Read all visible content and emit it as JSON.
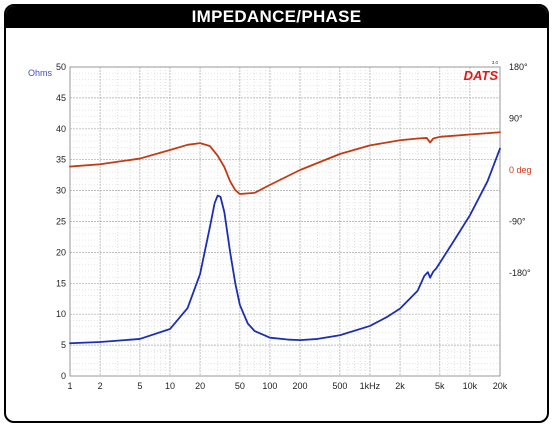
{
  "title": "IMPEDANCE/PHASE",
  "brand": {
    "logo_text": "DATS",
    "version": "3.0"
  },
  "chart_data": {
    "type": "line",
    "x_scale": "log",
    "xlim": [
      1,
      20000
    ],
    "x_tick_values": [
      1,
      2,
      5,
      10,
      20,
      50,
      100,
      200,
      500,
      1000,
      2000,
      5000,
      10000,
      20000
    ],
    "x_tick_labels": [
      "1",
      "2",
      "5",
      "10",
      "20",
      "50",
      "100",
      "200",
      "500",
      "1kHz",
      "2k",
      "5k",
      "10k",
      "20k"
    ],
    "y_left": {
      "label": "Ohms",
      "lim": [
        0,
        50
      ],
      "ticks": [
        0,
        5,
        10,
        15,
        20,
        25,
        30,
        35,
        40,
        45,
        50
      ]
    },
    "y_right": {
      "lim": [
        -360,
        180
      ],
      "tick_values": [
        180,
        90,
        0,
        -90,
        -180
      ],
      "tick_labels": [
        "180°",
        "90°",
        "0 deg",
        "-90°",
        "-180°"
      ]
    },
    "grid": true,
    "series": [
      {
        "name": "impedance",
        "axis": "left",
        "color": "#1b2fb5",
        "points": [
          [
            1,
            5.3
          ],
          [
            2,
            5.5
          ],
          [
            5,
            6.0
          ],
          [
            10,
            7.6
          ],
          [
            15,
            11.0
          ],
          [
            20,
            16.5
          ],
          [
            25,
            24.0
          ],
          [
            28,
            28.0
          ],
          [
            30,
            29.2
          ],
          [
            32,
            29.0
          ],
          [
            35,
            26.5
          ],
          [
            40,
            20.0
          ],
          [
            45,
            15.0
          ],
          [
            50,
            11.5
          ],
          [
            60,
            8.5
          ],
          [
            70,
            7.3
          ],
          [
            100,
            6.2
          ],
          [
            150,
            5.9
          ],
          [
            200,
            5.8
          ],
          [
            300,
            6.0
          ],
          [
            500,
            6.6
          ],
          [
            1000,
            8.1
          ],
          [
            1500,
            9.6
          ],
          [
            2000,
            10.9
          ],
          [
            3000,
            13.8
          ],
          [
            3500,
            16.2
          ],
          [
            3800,
            16.8
          ],
          [
            4000,
            15.9
          ],
          [
            4300,
            16.9
          ],
          [
            4600,
            17.4
          ],
          [
            5000,
            18.3
          ],
          [
            7000,
            22.0
          ],
          [
            10000,
            26.0
          ],
          [
            15000,
            31.5
          ],
          [
            20000,
            36.8
          ]
        ]
      },
      {
        "name": "phase",
        "axis": "right",
        "color": "#c53a12",
        "points": [
          [
            1,
            6
          ],
          [
            2,
            10
          ],
          [
            5,
            20
          ],
          [
            10,
            35
          ],
          [
            15,
            44
          ],
          [
            20,
            47
          ],
          [
            25,
            42
          ],
          [
            30,
            25
          ],
          [
            35,
            5
          ],
          [
            40,
            -20
          ],
          [
            45,
            -35
          ],
          [
            50,
            -42
          ],
          [
            70,
            -40
          ],
          [
            100,
            -26
          ],
          [
            200,
            0
          ],
          [
            500,
            28
          ],
          [
            1000,
            43
          ],
          [
            2000,
            52
          ],
          [
            3000,
            55
          ],
          [
            3700,
            56
          ],
          [
            4000,
            48
          ],
          [
            4300,
            55
          ],
          [
            5000,
            58
          ],
          [
            10000,
            62
          ],
          [
            20000,
            66
          ]
        ]
      }
    ]
  }
}
